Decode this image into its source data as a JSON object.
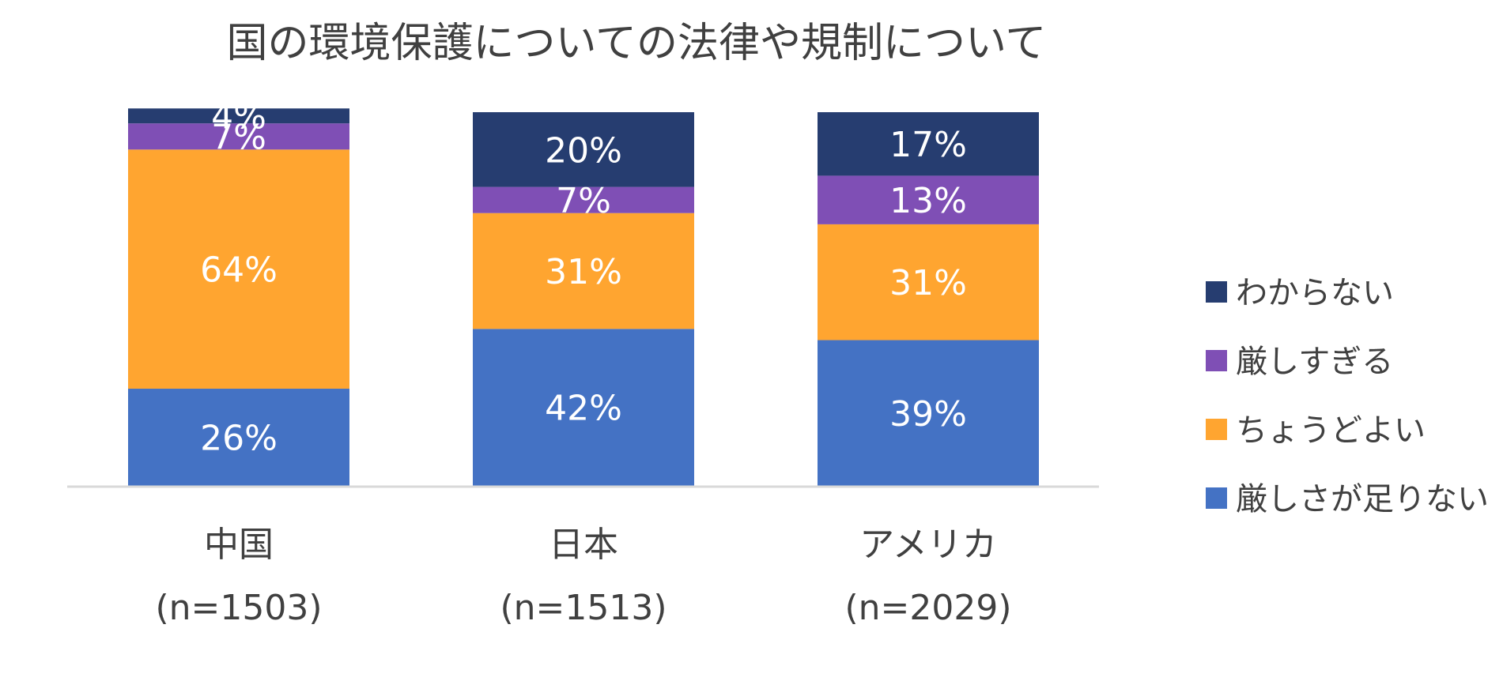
{
  "chart_data": {
    "type": "bar",
    "stacked": true,
    "title": "国の環境保護についての法律や規制について",
    "categories": [
      "中国",
      "日本",
      "アメリカ"
    ],
    "category_samples": [
      "(n=1503)",
      "(n=1513)",
      "(n=2029)"
    ],
    "series": [
      {
        "name": "厳しさが足りない",
        "color": "#4472C4",
        "values": [
          26,
          42,
          39
        ],
        "labels": [
          "26%",
          "42%",
          "39%"
        ]
      },
      {
        "name": "ちょうどよい",
        "color": "#FFA530",
        "values": [
          64,
          31,
          31
        ],
        "labels": [
          "64%",
          "31%",
          "31%"
        ]
      },
      {
        "name": "厳しすぎる",
        "color": "#7F4FB5",
        "values": [
          7,
          7,
          13
        ],
        "labels": [
          "7%",
          "7%",
          "13%"
        ]
      },
      {
        "name": "わからない",
        "color": "#263D70",
        "values": [
          4,
          20,
          17
        ],
        "labels": [
          "4%",
          "20%",
          "17%"
        ]
      }
    ],
    "legend_order": [
      "わからない",
      "厳しすぎる",
      "ちょうどよい",
      "厳しさが足りない"
    ],
    "legend_position": "right",
    "ylim": [
      0,
      100
    ],
    "grid": false
  }
}
